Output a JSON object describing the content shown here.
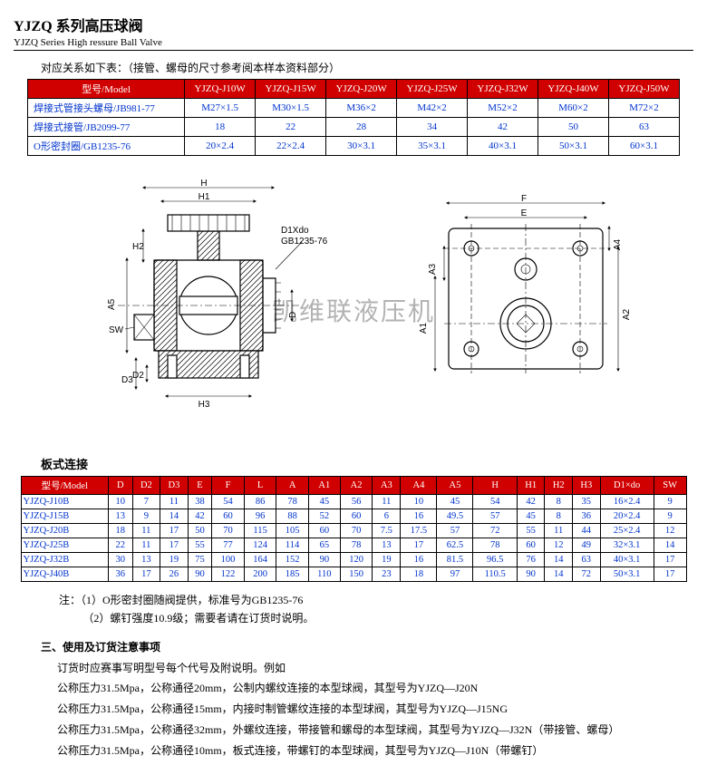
{
  "header": {
    "title_zh": "YJZQ 系列高压球阀",
    "title_en": "YJZQ Series High ressure Ball Valve"
  },
  "subtitle1": "对应关系如下表：（接管、螺母的尺寸参考阅本样本资料部分）",
  "table1": {
    "header_bg": "#d10000",
    "header_fg": "#ffffff",
    "cell_fg": "#0033cc",
    "cols": [
      "型号/Model",
      "YJZQ-J10W",
      "YJZQ-J15W",
      "YJZQ-J20W",
      "YJZQ-J25W",
      "YJZQ-J32W",
      "YJZQ-J40W",
      "YJZQ-J50W"
    ],
    "rows": [
      [
        "焊接式管接头螺母/JB981-77",
        "M27×1.5",
        "M30×1.5",
        "M36×2",
        "M42×2",
        "M52×2",
        "M60×2",
        "M72×2"
      ],
      [
        "焊接式接管/JB2099-77",
        "18",
        "22",
        "28",
        "34",
        "42",
        "50",
        "63"
      ],
      [
        "O形密封圈/GB1235-76",
        "20×2.4",
        "22×2.4",
        "30×3.1",
        "35×3.1",
        "40×3.1",
        "50×3.1",
        "60×3.1"
      ]
    ]
  },
  "diagram": {
    "left_labels": {
      "H": "H",
      "H1": "H1",
      "H2": "H2",
      "H3": "H3",
      "A5": "A5",
      "D": "D",
      "D2": "D2",
      "D3": "D3",
      "SW": "SW",
      "callout": "D1Xdo",
      "callout2": "GB1235-76"
    },
    "right_labels": {
      "F": "F",
      "E": "E",
      "A1": "A1",
      "A2": "A2",
      "A3": "A3",
      "A4": "A4"
    },
    "watermark": "凯维联液压机"
  },
  "section2_label": "板式连接",
  "table2": {
    "header_bg": "#d10000",
    "header_fg": "#ffffff",
    "cell_fg": "#0033cc",
    "cols": [
      "型号/Model",
      "D",
      "D2",
      "D3",
      "E",
      "F",
      "L",
      "A",
      "A1",
      "A2",
      "A3",
      "A4",
      "A5",
      "H",
      "H1",
      "H2",
      "H3",
      "D1×do",
      "SW"
    ],
    "rows": [
      [
        "YJZQ-J10B",
        "10",
        "7",
        "11",
        "38",
        "54",
        "86",
        "78",
        "45",
        "56",
        "11",
        "10",
        "45",
        "54",
        "42",
        "8",
        "35",
        "16×2.4",
        "9"
      ],
      [
        "YJZQ-J15B",
        "13",
        "9",
        "14",
        "42",
        "60",
        "96",
        "88",
        "52",
        "60",
        "6",
        "16",
        "49.5",
        "57",
        "45",
        "8",
        "36",
        "20×2.4",
        "9"
      ],
      [
        "YJZQ-J20B",
        "18",
        "11",
        "17",
        "50",
        "70",
        "115",
        "105",
        "60",
        "70",
        "7.5",
        "17.5",
        "57",
        "72",
        "55",
        "11",
        "44",
        "25×2.4",
        "12"
      ],
      [
        "YJZQ-J25B",
        "22",
        "11",
        "17",
        "55",
        "77",
        "124",
        "114",
        "65",
        "78",
        "13",
        "17",
        "62.5",
        "78",
        "60",
        "12",
        "49",
        "32×3.1",
        "14"
      ],
      [
        "YJZQ-J32B",
        "30",
        "13",
        "19",
        "75",
        "100",
        "164",
        "152",
        "90",
        "120",
        "19",
        "16",
        "81.5",
        "96.5",
        "76",
        "14",
        "63",
        "40×3.1",
        "17"
      ],
      [
        "YJZQ-J40B",
        "36",
        "17",
        "26",
        "90",
        "122",
        "200",
        "185",
        "110",
        "150",
        "23",
        "18",
        "97",
        "110.5",
        "90",
        "14",
        "72",
        "50×3.1",
        "17"
      ]
    ]
  },
  "notes": {
    "n1": "注：（1）O形密封圈随阀提供，标准号为GB1235-76",
    "n2": "（2）螺钉强度10.9级；需要者请在订货时说明。"
  },
  "usage": {
    "heading": "三、使用及订货注意事项",
    "lines": [
      "订货时应赛事写明型号每个代号及附说明。例如",
      "公称压力31.5Mpa，公称通径20mm，公制内螺纹连接的本型球阀，其型号为YJZQ—J20N",
      "公称压力31.5Mpa，公称通径15mm，内接时制管螺纹连接的本型球阀，其型号为YJZQ—J15NG",
      "公称压力31.5Mpa，公称通径32mm，外螺纹连接，带接管和螺母的本型球阀，其型号为YJZQ—J32N（带接管、螺母）",
      "公称压力31.5Mpa，公称通径10mm，板式连接，带螺钉的本型球阀，其型号为YJZQ—J10N（带螺钉）"
    ]
  }
}
